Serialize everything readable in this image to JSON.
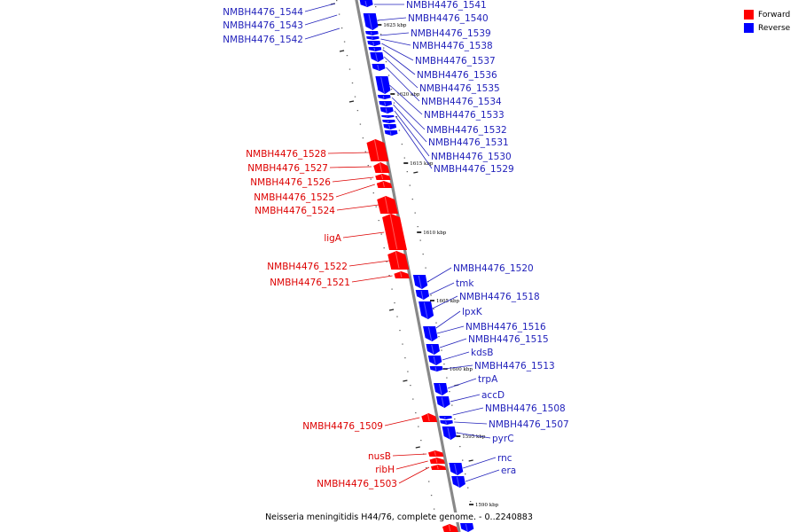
{
  "legend": {
    "forward_label": "Forward",
    "reverse_label": "Reverse"
  },
  "colors": {
    "forward": "#ff0000",
    "reverse": "#0000ff",
    "backbone": "#888888",
    "forward_label": "#dd0000",
    "reverse_label": "#2222bb"
  },
  "caption": "Neisseria meningitidis H44/76, complete genome. - 0..2240883",
  "scale_ticks": [
    "1625 kbp",
    "1620 kbp",
    "1615 kbp",
    "1610 kbp",
    "1605 kbp",
    "1600 kbp",
    "1595 kbp",
    "1590 kbp"
  ],
  "forward_genes": [
    "NMBH4476_1528",
    "NMBH4476_1527",
    "NMBH4476_1526",
    "NMBH4476_1525",
    "NMBH4476_1524",
    "ligA",
    "NMBH4476_1522",
    "NMBH4476_1521",
    "NMBH4476_1509",
    "nusB",
    "ribH",
    "NMBH4476_1503"
  ],
  "reverse_genes": [
    "NMBH4476_1544",
    "NMBH4476_1543",
    "NMBH4476_1542",
    "NMBH4476_1541",
    "NMBH4476_1540",
    "NMBH4476_1539",
    "NMBH4476_1538",
    "NMBH4476_1537",
    "NMBH4476_1536",
    "NMBH4476_1535",
    "NMBH4476_1534",
    "NMBH4476_1533",
    "NMBH4476_1532",
    "NMBH4476_1531",
    "NMBH4476_1530",
    "NMBH4476_1529",
    "NMBH4476_1520",
    "tmk",
    "NMBH4476_1518",
    "lpxK",
    "NMBH4476_1516",
    "NMBH4476_1515",
    "kdsB",
    "NMBH4476_1513",
    "trpA",
    "accD",
    "NMBH4476_1508",
    "NMBH4476_1507",
    "pyrC",
    "rnc",
    "era"
  ]
}
